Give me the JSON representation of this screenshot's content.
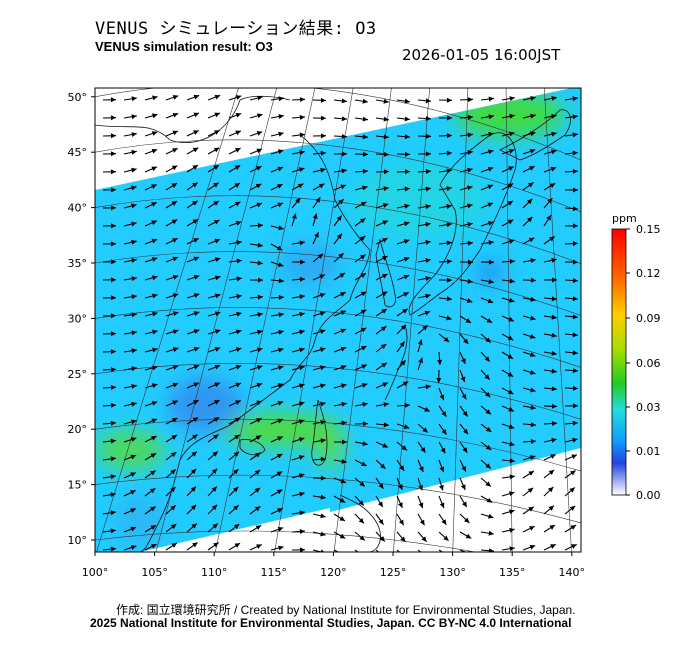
{
  "title_jp": "VENUS シミュレーション結果: O3",
  "title_en": "VENUS simulation result: O3",
  "timestamp": "2026-01-05 16:00JST",
  "credit_line1": "作成: 国立環境研究所 / Created by National Institute for Environmental Studies, Japan.",
  "credit_line2": "2025 National Institute for Environmental Studies, Japan. CC BY-NC 4.0 International",
  "map": {
    "lon_range": [
      100,
      142
    ],
    "lat_range": [
      9,
      51
    ],
    "lon_ticks": [
      "100°",
      "105°",
      "110°",
      "115°",
      "120°",
      "125°",
      "130°",
      "135°",
      "140°"
    ],
    "lat_ticks": [
      "10°",
      "15°",
      "20°",
      "25°",
      "30°",
      "35°",
      "40°",
      "45°",
      "50°"
    ],
    "field_color_dominant": "#22ccff",
    "high_color": "#44dd22",
    "low_color": "#3388ee"
  },
  "colorbar": {
    "unit": "ppm",
    "ticks": [
      "0.15",
      "0.12",
      "0.09",
      "0.06",
      "0.03",
      "0.01",
      "0.00"
    ],
    "colors": [
      "#ff0000",
      "#ff6600",
      "#ffcc00",
      "#aadd00",
      "#22cc22",
      "#22dddd",
      "#1199ff",
      "#2244dd",
      "#ffffff"
    ]
  }
}
